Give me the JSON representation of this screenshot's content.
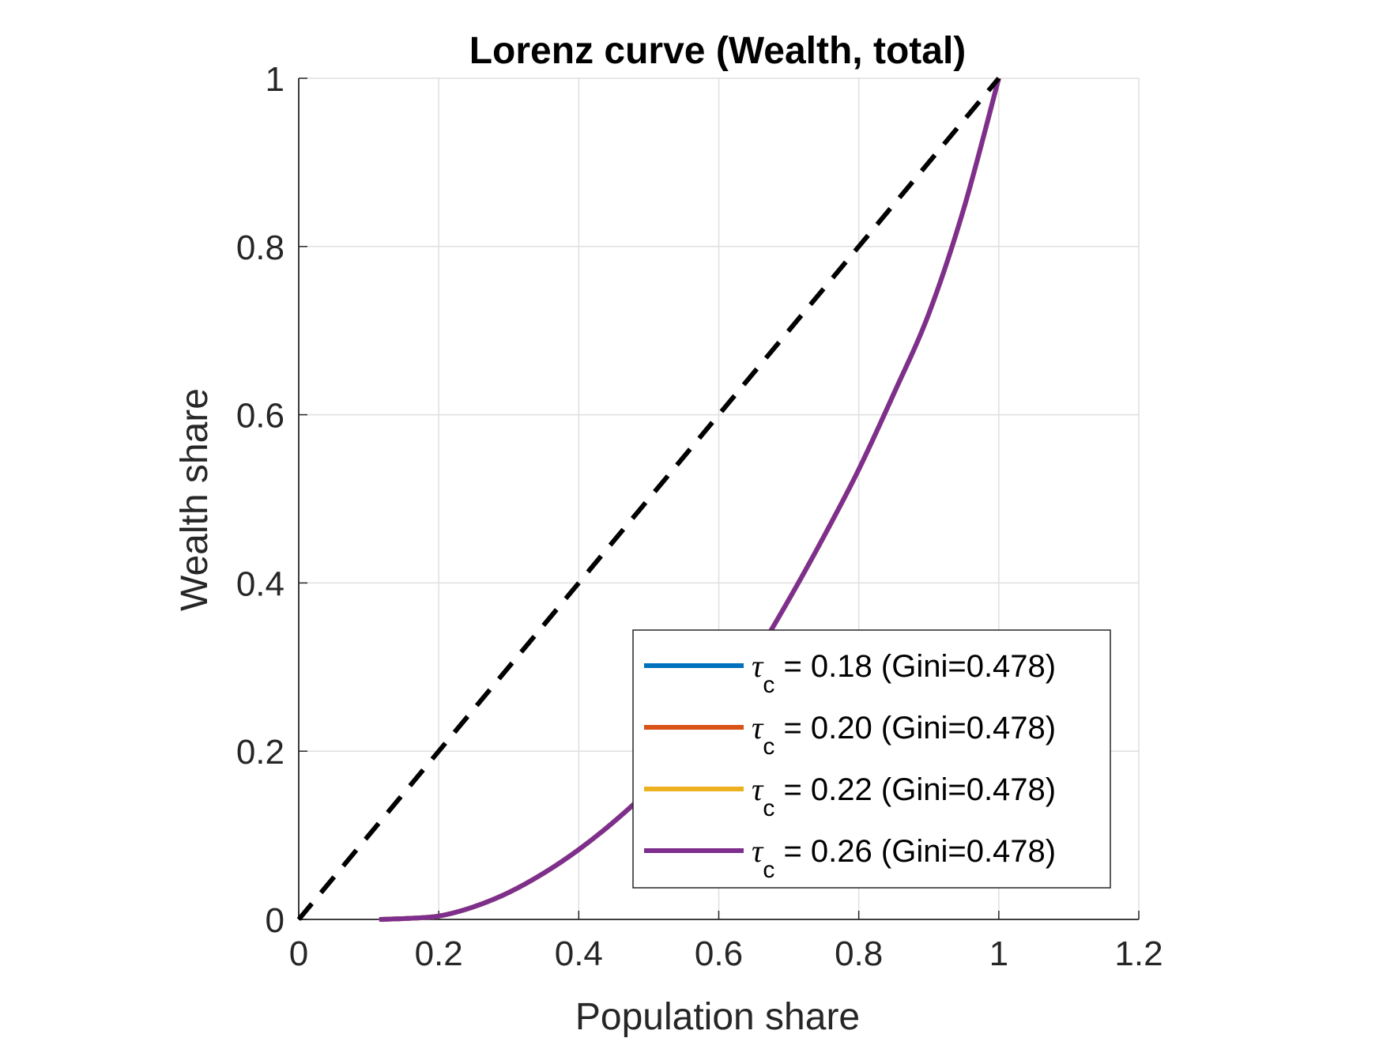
{
  "chart_data": {
    "type": "line",
    "title": "Lorenz curve (Wealth, total)",
    "xlabel": "Population share",
    "ylabel": "Wealth share",
    "xlim": [
      0,
      1.2
    ],
    "ylim": [
      0,
      1
    ],
    "xticks": [
      "0",
      "0.2",
      "0.4",
      "0.6",
      "0.8",
      "1",
      "1.2"
    ],
    "yticks": [
      "0",
      "0.2",
      "0.4",
      "0.6",
      "0.8",
      "1"
    ],
    "grid": true,
    "legend_position": "bottom-right",
    "equality_line": {
      "style": "dashed",
      "color": "#000000",
      "x": [
        0,
        1
      ],
      "y": [
        0,
        1
      ]
    },
    "series": [
      {
        "name": "τc = 0.18 (Gini=0.478)",
        "legend": {
          "symbol": "τ",
          "sub": "c",
          "text": " = 0.18 (Gini=0.478)"
        },
        "color": "#0072BD",
        "x": [
          0.115,
          0.15,
          0.2,
          0.25,
          0.3,
          0.35,
          0.4,
          0.45,
          0.5,
          0.55,
          0.6,
          0.65,
          0.7,
          0.75,
          0.8,
          0.85,
          0.9,
          0.95,
          1.0
        ],
        "y": [
          0,
          0.001,
          0.004,
          0.015,
          0.032,
          0.055,
          0.083,
          0.116,
          0.154,
          0.2,
          0.25,
          0.31,
          0.38,
          0.455,
          0.535,
          0.625,
          0.72,
          0.845,
          1.0
        ]
      },
      {
        "name": "τc = 0.20 (Gini=0.478)",
        "legend": {
          "symbol": "τ",
          "sub": "c",
          "text": " = 0.20 (Gini=0.478)"
        },
        "color": "#D95319",
        "x": [
          0.115,
          0.15,
          0.2,
          0.25,
          0.3,
          0.35,
          0.4,
          0.45,
          0.5,
          0.55,
          0.6,
          0.65,
          0.7,
          0.75,
          0.8,
          0.85,
          0.9,
          0.95,
          1.0
        ],
        "y": [
          0,
          0.001,
          0.004,
          0.015,
          0.032,
          0.055,
          0.083,
          0.116,
          0.154,
          0.2,
          0.25,
          0.31,
          0.38,
          0.455,
          0.535,
          0.625,
          0.72,
          0.845,
          1.0
        ]
      },
      {
        "name": "τc = 0.22 (Gini=0.478)",
        "legend": {
          "symbol": "τ",
          "sub": "c",
          "text": " = 0.22 (Gini=0.478)"
        },
        "color": "#EDB120",
        "x": [
          0.115,
          0.15,
          0.2,
          0.25,
          0.3,
          0.35,
          0.4,
          0.45,
          0.5,
          0.55,
          0.6,
          0.65,
          0.7,
          0.75,
          0.8,
          0.85,
          0.9,
          0.95,
          1.0
        ],
        "y": [
          0,
          0.001,
          0.004,
          0.015,
          0.032,
          0.055,
          0.083,
          0.116,
          0.154,
          0.2,
          0.25,
          0.31,
          0.38,
          0.455,
          0.535,
          0.625,
          0.72,
          0.845,
          1.0
        ]
      },
      {
        "name": "τc = 0.26 (Gini=0.478)",
        "legend": {
          "symbol": "τ",
          "sub": "c",
          "text": " = 0.26 (Gini=0.478)"
        },
        "color": "#7E2F8E",
        "x": [
          0.115,
          0.15,
          0.2,
          0.25,
          0.3,
          0.35,
          0.4,
          0.45,
          0.5,
          0.55,
          0.6,
          0.65,
          0.7,
          0.75,
          0.8,
          0.85,
          0.9,
          0.95,
          1.0
        ],
        "y": [
          0,
          0.001,
          0.004,
          0.015,
          0.032,
          0.055,
          0.083,
          0.116,
          0.154,
          0.2,
          0.25,
          0.31,
          0.38,
          0.455,
          0.535,
          0.625,
          0.72,
          0.845,
          1.0
        ]
      }
    ]
  }
}
